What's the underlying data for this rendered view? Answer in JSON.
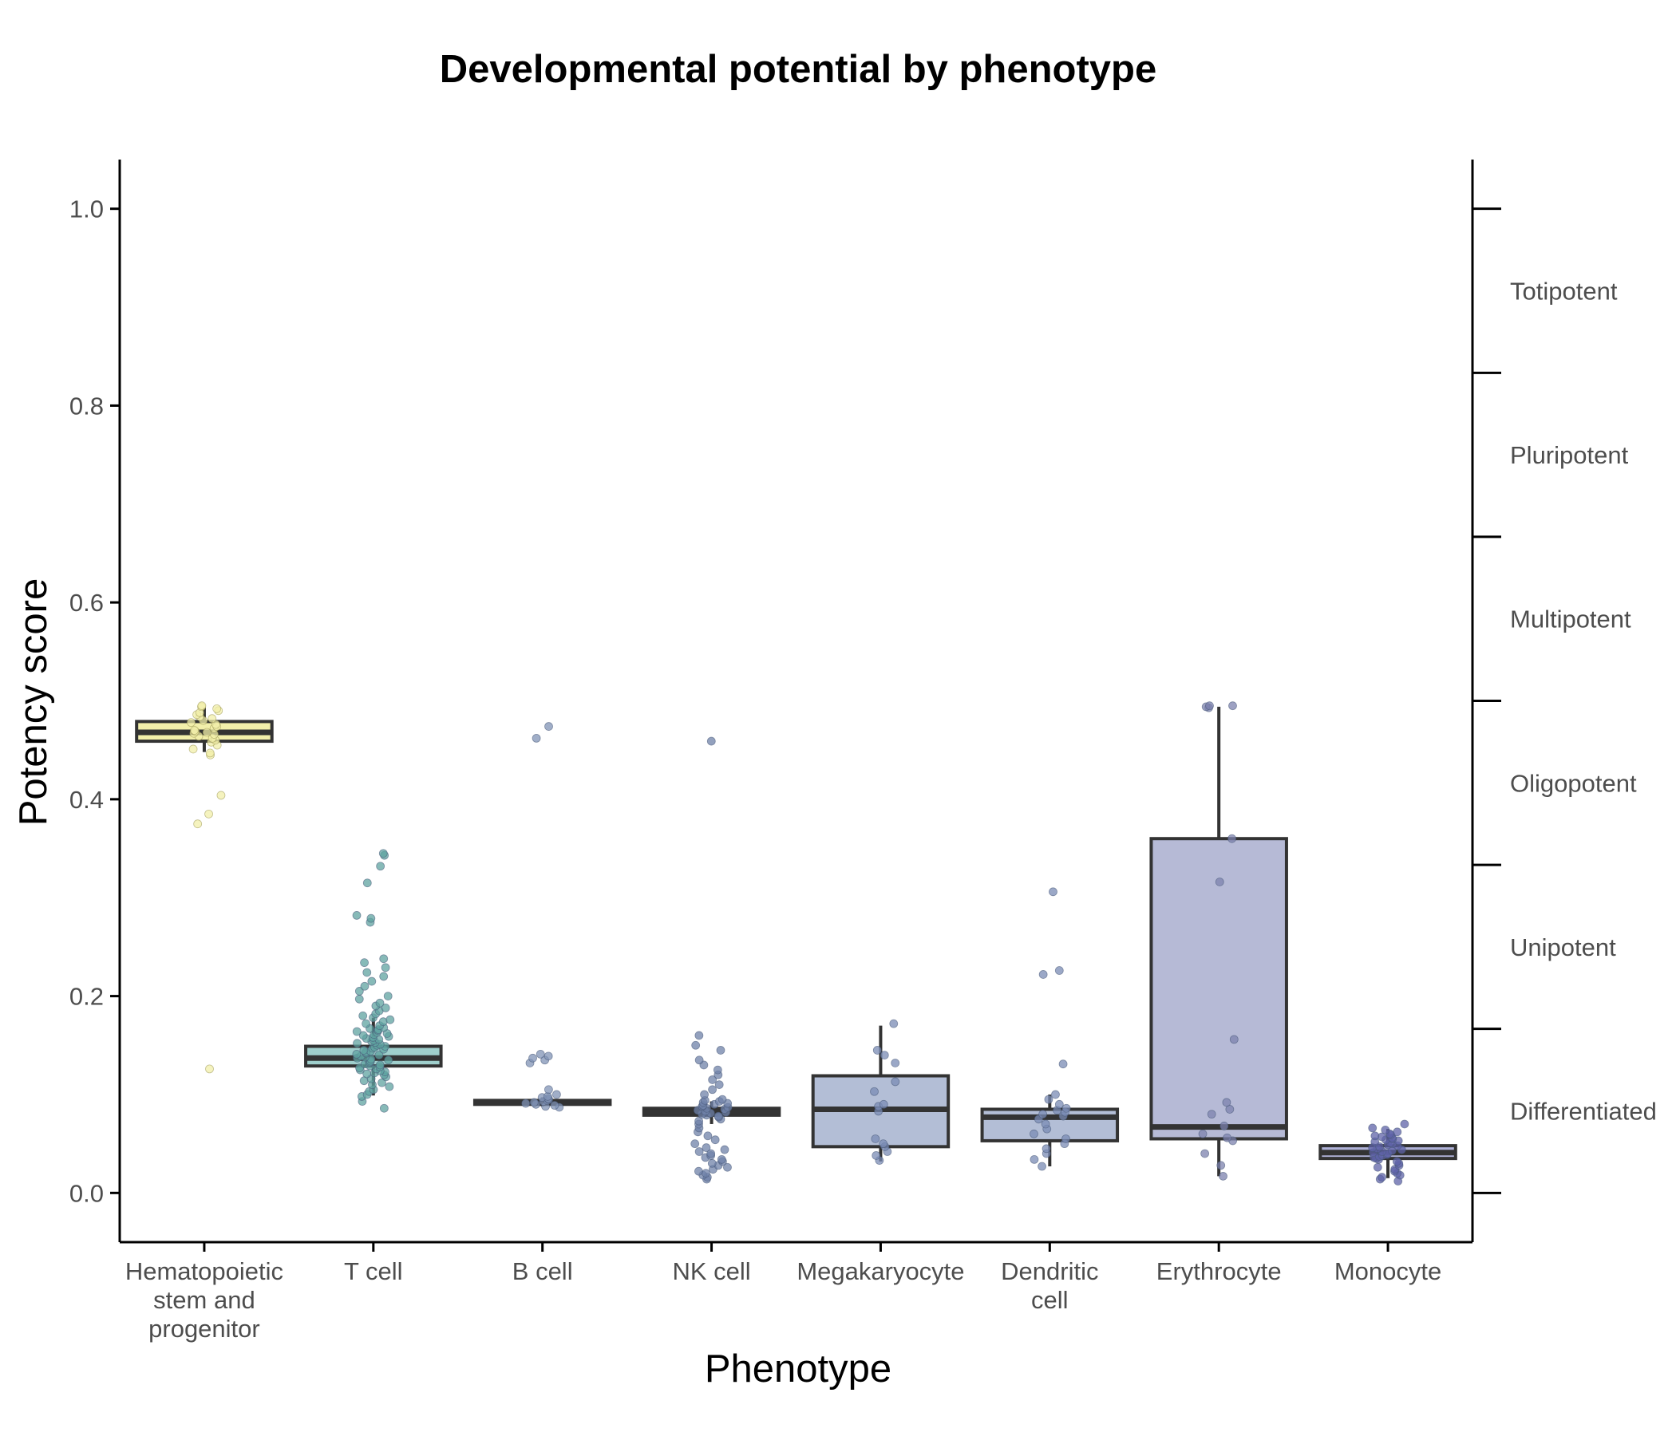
{
  "chart_data": {
    "type": "box",
    "title": "Developmental potential by phenotype",
    "xlabel": "Phenotype",
    "ylabel": "Potency score",
    "ylim": [
      -0.05,
      1.05
    ],
    "yticks": [
      0.0,
      0.2,
      0.4,
      0.6,
      0.8,
      1.0
    ],
    "ytick_labels": [
      "0.0",
      "0.2",
      "0.4",
      "0.6",
      "0.8",
      "1.0"
    ],
    "grid": false,
    "legend": "none",
    "categories": [
      {
        "label": "Hematopoietic stem and progenitor",
        "label_lines": [
          "Hematopoietic",
          "stem and",
          "progenitor"
        ],
        "color": "#f2efaa",
        "box": {
          "q1": 0.459,
          "median": 0.468,
          "q3": 0.479,
          "whisker_low": 0.448,
          "whisker_high": 0.493
        },
        "points": [
          0.126,
          0.375,
          0.385,
          0.404,
          0.445,
          0.447,
          0.451,
          0.455,
          0.458,
          0.46,
          0.462,
          0.464,
          0.466,
          0.467,
          0.468,
          0.469,
          0.47,
          0.472,
          0.474,
          0.476,
          0.478,
          0.48,
          0.482,
          0.484,
          0.486,
          0.488,
          0.49,
          0.492,
          0.494,
          0.495
        ]
      },
      {
        "label": "T cell",
        "label_lines": [
          "T cell"
        ],
        "color": "#9fcfcc",
        "point_color": "#5fa3a0",
        "box": {
          "q1": 0.129,
          "median": 0.137,
          "q3": 0.149,
          "whisker_low": 0.099,
          "whisker_high": 0.178
        },
        "points": [
          0.086,
          0.093,
          0.098,
          0.1,
          0.103,
          0.105,
          0.108,
          0.11,
          0.112,
          0.114,
          0.116,
          0.118,
          0.12,
          0.121,
          0.122,
          0.123,
          0.124,
          0.125,
          0.126,
          0.127,
          0.128,
          0.129,
          0.13,
          0.131,
          0.132,
          0.133,
          0.134,
          0.135,
          0.136,
          0.137,
          0.138,
          0.139,
          0.14,
          0.141,
          0.142,
          0.143,
          0.144,
          0.145,
          0.146,
          0.147,
          0.148,
          0.149,
          0.15,
          0.151,
          0.152,
          0.153,
          0.154,
          0.155,
          0.156,
          0.157,
          0.158,
          0.159,
          0.16,
          0.161,
          0.162,
          0.163,
          0.164,
          0.165,
          0.166,
          0.167,
          0.168,
          0.17,
          0.172,
          0.174,
          0.176,
          0.178,
          0.18,
          0.182,
          0.185,
          0.188,
          0.19,
          0.193,
          0.197,
          0.2,
          0.205,
          0.21,
          0.215,
          0.22,
          0.224,
          0.229,
          0.234,
          0.238,
          0.275,
          0.279,
          0.282,
          0.315,
          0.332,
          0.343,
          0.345
        ]
      },
      {
        "label": "B cell",
        "label_lines": [
          "B cell"
        ],
        "color": "#a9b9d4",
        "point_color": "#8093b6",
        "box": {
          "q1": 0.09,
          "median": 0.092,
          "q3": 0.094,
          "whisker_low": 0.088,
          "whisker_high": 0.097
        },
        "points": [
          0.087,
          0.088,
          0.089,
          0.09,
          0.091,
          0.092,
          0.093,
          0.094,
          0.095,
          0.096,
          0.097,
          0.098,
          0.1,
          0.105,
          0.132,
          0.135,
          0.137,
          0.139,
          0.141,
          0.462,
          0.474
        ]
      },
      {
        "label": "NK cell",
        "label_lines": [
          "NK cell"
        ],
        "color": "#a9b9d4",
        "point_color": "#6f82a8",
        "box": {
          "q1": 0.079,
          "median": 0.082,
          "q3": 0.086,
          "whisker_low": 0.07,
          "whisker_high": 0.093
        },
        "points": [
          0.014,
          0.016,
          0.018,
          0.02,
          0.022,
          0.024,
          0.026,
          0.028,
          0.03,
          0.032,
          0.034,
          0.036,
          0.038,
          0.04,
          0.042,
          0.044,
          0.046,
          0.05,
          0.054,
          0.058,
          0.062,
          0.066,
          0.07,
          0.073,
          0.075,
          0.077,
          0.078,
          0.079,
          0.08,
          0.081,
          0.082,
          0.083,
          0.084,
          0.085,
          0.086,
          0.087,
          0.088,
          0.089,
          0.09,
          0.091,
          0.092,
          0.093,
          0.094,
          0.095,
          0.1,
          0.105,
          0.11,
          0.115,
          0.12,
          0.125,
          0.13,
          0.135,
          0.145,
          0.15,
          0.16,
          0.459
        ]
      },
      {
        "label": "Megakaryocyte",
        "label_lines": [
          "Megakaryocyte"
        ],
        "color": "#b3bed6",
        "point_color": "#7a8bb4",
        "box": {
          "q1": 0.047,
          "median": 0.085,
          "q3": 0.119,
          "whisker_low": 0.032,
          "whisker_high": 0.17
        },
        "points": [
          0.033,
          0.038,
          0.042,
          0.047,
          0.05,
          0.055,
          0.083,
          0.088,
          0.09,
          0.103,
          0.113,
          0.132,
          0.14,
          0.145,
          0.172
        ]
      },
      {
        "label": "Dendritic cell",
        "label_lines": [
          "Dendritic",
          "cell"
        ],
        "color": "#b3bed6",
        "point_color": "#7a8bb4",
        "box": {
          "q1": 0.053,
          "median": 0.077,
          "q3": 0.085,
          "whisker_low": 0.027,
          "whisker_high": 0.1
        },
        "points": [
          0.027,
          0.034,
          0.04,
          0.045,
          0.05,
          0.055,
          0.06,
          0.065,
          0.07,
          0.075,
          0.078,
          0.08,
          0.082,
          0.084,
          0.086,
          0.09,
          0.095,
          0.1,
          0.131,
          0.222,
          0.226,
          0.306
        ]
      },
      {
        "label": "Erythrocyte",
        "label_lines": [
          "Erythrocyte"
        ],
        "color": "#b6bad6",
        "point_color": "#7c82ad",
        "box": {
          "q1": 0.055,
          "median": 0.067,
          "q3": 0.36,
          "whisker_low": 0.017,
          "whisker_high": 0.494
        },
        "points": [
          0.017,
          0.028,
          0.04,
          0.053,
          0.056,
          0.06,
          0.068,
          0.08,
          0.085,
          0.092,
          0.156,
          0.316,
          0.36,
          0.493,
          0.494,
          0.495,
          0.495
        ]
      },
      {
        "label": "Monocyte",
        "label_lines": [
          "Monocyte"
        ],
        "color": "#b0b3d9",
        "point_color": "#5f63a8",
        "box": {
          "q1": 0.035,
          "median": 0.041,
          "q3": 0.048,
          "whisker_low": 0.015,
          "whisker_high": 0.065
        },
        "points": [
          0.012,
          0.014,
          0.016,
          0.018,
          0.02,
          0.022,
          0.024,
          0.026,
          0.028,
          0.03,
          0.032,
          0.034,
          0.035,
          0.036,
          0.037,
          0.038,
          0.039,
          0.04,
          0.041,
          0.042,
          0.043,
          0.044,
          0.045,
          0.046,
          0.047,
          0.048,
          0.049,
          0.05,
          0.051,
          0.052,
          0.053,
          0.054,
          0.055,
          0.056,
          0.057,
          0.058,
          0.059,
          0.06,
          0.062,
          0.064,
          0.066,
          0.07
        ]
      }
    ],
    "secondary_axis": {
      "ticks": [
        0.0,
        0.1667,
        0.3333,
        0.5,
        0.6667,
        0.8333,
        1.0
      ],
      "labels": [
        {
          "text": "Differentiated",
          "value": 0.0833
        },
        {
          "text": "Unipotent",
          "value": 0.25
        },
        {
          "text": "Oligopotent",
          "value": 0.4167
        },
        {
          "text": "Multipotent",
          "value": 0.5833
        },
        {
          "text": "Pluripotent",
          "value": 0.75
        },
        {
          "text": "Totipotent",
          "value": 0.9167
        }
      ]
    }
  }
}
